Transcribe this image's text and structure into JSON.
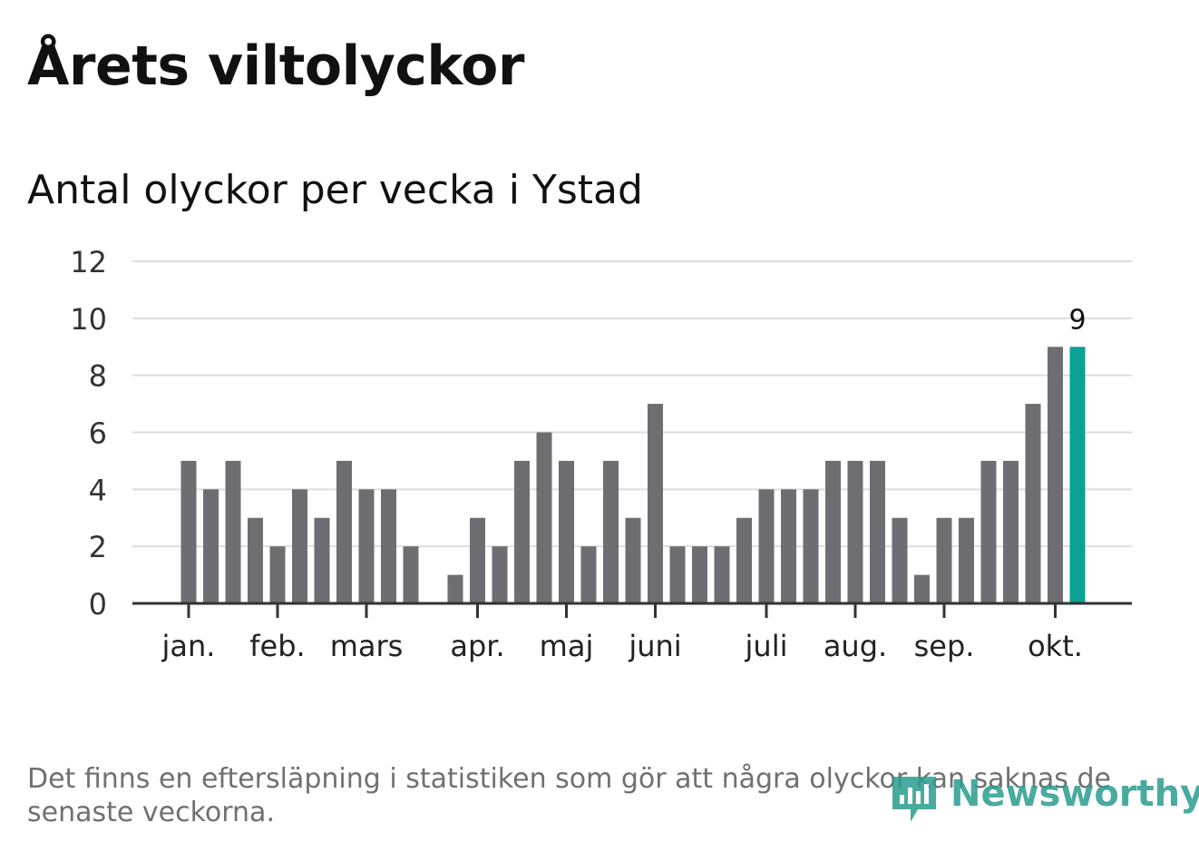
{
  "header": {
    "title": "Årets viltolyckor",
    "subtitle": "Antal olyckor per vecka i Ystad"
  },
  "chart_data": {
    "type": "bar",
    "unit": "olyckor per vecka",
    "ylim": [
      0,
      12
    ],
    "yticks": [
      0,
      2,
      4,
      6,
      8,
      10,
      12
    ],
    "grid": true,
    "values": [
      5,
      4,
      5,
      3,
      2,
      4,
      3,
      5,
      4,
      4,
      2,
      0,
      1,
      3,
      2,
      5,
      6,
      5,
      2,
      5,
      3,
      7,
      2,
      2,
      2,
      3,
      4,
      4,
      4,
      5,
      5,
      5,
      3,
      1,
      3,
      3,
      5,
      5,
      7,
      9,
      9
    ],
    "highlight_index": 40,
    "highlight_label": "9",
    "month_ticks": [
      {
        "label": "jan.",
        "week_index": 0
      },
      {
        "label": "feb.",
        "week_index": 4
      },
      {
        "label": "mars",
        "week_index": 8
      },
      {
        "label": "apr.",
        "week_index": 13
      },
      {
        "label": "maj",
        "week_index": 17
      },
      {
        "label": "juni",
        "week_index": 21
      },
      {
        "label": "juli",
        "week_index": 26
      },
      {
        "label": "aug.",
        "week_index": 30
      },
      {
        "label": "sep.",
        "week_index": 34
      },
      {
        "label": "okt.",
        "week_index": 39
      }
    ],
    "colors": {
      "bar": "#6e6d72",
      "highlight": "#0ba194",
      "grid": "#dddddd",
      "axis": "#333333"
    }
  },
  "footnote": "Det finns en eftersläpning i statistiken som gör att några olyckor kan saknas de senaste veckorna.",
  "logo": {
    "text": "Newsworthy",
    "icon": "newsworthy-logo-icon"
  }
}
